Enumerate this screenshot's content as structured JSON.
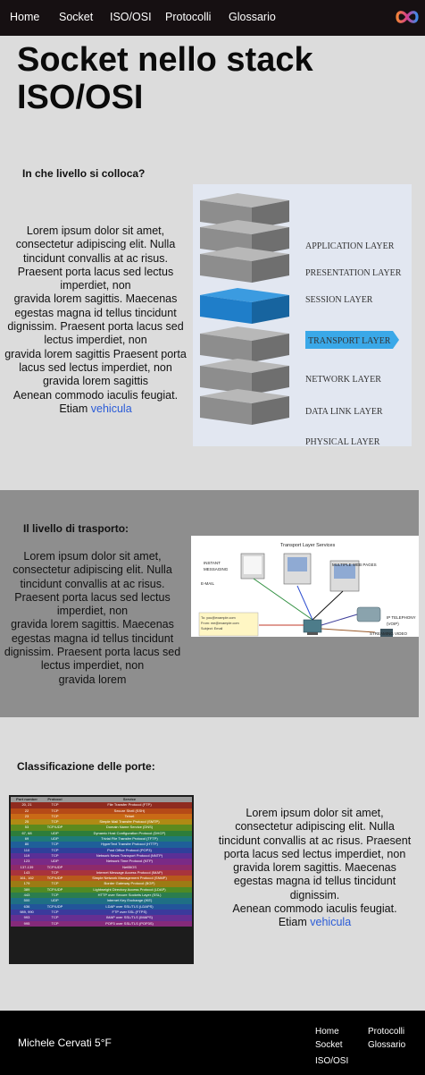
{
  "nav": {
    "items": [
      "Home",
      "Socket",
      "ISO/OSI",
      "Protocolli",
      "Glossario"
    ],
    "logo_icon": "infinity-logo-icon"
  },
  "section1": {
    "title": "Socket nello stack ISO/OSI",
    "heading": "In che livello si colloca?",
    "paragraph_lines": [
      "Lorem ipsum dolor sit amet,",
      "consectetur adipiscing elit. Nulla",
      "tincidunt convallis at ac risus.",
      "Praesent porta lacus sed lectus",
      "imperdiet, non",
      "gravida lorem sagittis. Maecenas",
      "egestas magna id tellus tincidunt",
      "dignissim. Praesent porta lacus sed",
      "lectus imperdiet, non",
      "gravida lorem sagittis Praesent porta",
      "lacus sed lectus imperdiet, non",
      "gravida lorem sagittis",
      "Aenean commodo iaculis feugiat."
    ],
    "last_line_prefix": "Etiam",
    "link_text": "vehicula",
    "osi_layers": [
      "APPLICATION LAYER",
      "PRESENTATION LAYER",
      "SESSION LAYER",
      "TRANSPORT LAYER",
      "NETWORK LAYER",
      "DATA LINK LAYER",
      "PHYSICAL LAYER"
    ],
    "highlight_color": "#1f7ec9"
  },
  "section2": {
    "heading": "Il livello di trasporto:",
    "paragraph_lines": [
      "Lorem ipsum dolor sit amet,",
      "consectetur adipiscing elit. Nulla",
      "tincidunt convallis at ac risus.",
      "Praesent porta lacus sed lectus",
      "imperdiet, non",
      "gravida lorem sagittis. Maecenas",
      "egestas magna id tellus tincidunt",
      "dignissim. Praesent porta lacus sed",
      "lectus imperdiet, non",
      "gravida lorem"
    ],
    "diagram": {
      "title": "Transport Layer Services",
      "instant_messaging": "INSTANT\nMESSAGING",
      "multiple_web_pages": "MULTIPLE WEB PAGES",
      "email": "E-MAIL",
      "email_lines": [
        "To: you@example.com",
        "From: me@example.com",
        "Subject: Email"
      ],
      "ip_telephony": "IP TELEPHONY\n(VOIP)",
      "streaming_video": "STREAMING VIDEO"
    }
  },
  "section3": {
    "heading": "Classificazione delle porte:",
    "ports_table": {
      "headers": [
        "Port number",
        "Protocol",
        "Service"
      ],
      "rows": [
        [
          "20, 21",
          "TCP",
          "File Transfer Protocol (FTP)",
          "#8f2b1f"
        ],
        [
          "22",
          "TCP",
          "Secure Shell (SSH)",
          "#b54a17"
        ],
        [
          "23",
          "TCP",
          "Telnet",
          "#c96a16"
        ],
        [
          "25",
          "TCP",
          "Simple Mail Transfer Protocol (SMTP)",
          "#b08a14"
        ],
        [
          "53",
          "TCP/UDP",
          "Domain Name Service (DNS)",
          "#5d8a1e"
        ],
        [
          "67, 68",
          "UDP",
          "Dynamic Host Configuration Protocol (DHCP)",
          "#2d7d3a"
        ],
        [
          "69",
          "UDP",
          "Trivial File Transfer Protocol (TFTP)",
          "#1f7a78"
        ],
        [
          "80",
          "TCP",
          "HyperText Transfer Protocol (HTTP)",
          "#1f5f99"
        ],
        [
          "110",
          "TCP",
          "Post Office Protocol (POP3)",
          "#2f3f9a"
        ],
        [
          "119",
          "TCP",
          "Network News Transport Protocol (NNTP)",
          "#5a2f96"
        ],
        [
          "123",
          "UDP",
          "Network Time Protocol (NTP)",
          "#7a2a86"
        ],
        [
          "137-139",
          "TCP/UDP",
          "NetBIOS",
          "#8e2a6a"
        ],
        [
          "143",
          "TCP",
          "Internet Message Access Protocol (IMAP)",
          "#a8333c"
        ],
        [
          "161, 162",
          "TCP/UDP",
          "Simple Network Management Protocol (SNMP)",
          "#b8581c"
        ],
        [
          "179",
          "TCP",
          "Border Gateway Protocol (BGP)",
          "#9c7b14"
        ],
        [
          "389",
          "TCP/UDP",
          "Lightweight Directory Access Protocol (LDAP)",
          "#4f8a24"
        ],
        [
          "443",
          "TCP",
          "HTTP over Secure Sockets Layer (SSL)",
          "#2b7d4e"
        ],
        [
          "500",
          "UDP",
          "Internet Key Exchange (IKE)",
          "#1f6f85"
        ],
        [
          "636",
          "TCP/UDP",
          "LDAP over SSL/TLS (LDAPS)",
          "#22559a"
        ],
        [
          "989, 990",
          "TCP",
          "FTP over SSL (FTPS)",
          "#3b3a9c"
        ],
        [
          "993",
          "TCP",
          "IMAP over SSL/TLS (IMAPS)",
          "#662f92"
        ],
        [
          "995",
          "TCP",
          "POP3 over SSL/TLS (POP3S)",
          "#852a7a"
        ]
      ]
    },
    "paragraph_lines": [
      "Lorem ipsum dolor sit amet,",
      "consectetur adipiscing elit. Nulla",
      "tincidunt convallis at ac risus. Praesent",
      "porta lacus sed lectus imperdiet, non",
      "gravida lorem sagittis. Maecenas",
      "egestas magna id tellus tincidunt",
      "dignissim.",
      "Aenean commodo iaculis feugiat."
    ],
    "last_line_prefix": "Etiam",
    "link_text": "vehicula"
  },
  "footer": {
    "owner": "Michele Cervati 5°F",
    "links_col1": [
      "Home",
      "Socket",
      "ISO/OSI"
    ],
    "links_col2": [
      "Protocolli",
      "Glossario"
    ]
  }
}
